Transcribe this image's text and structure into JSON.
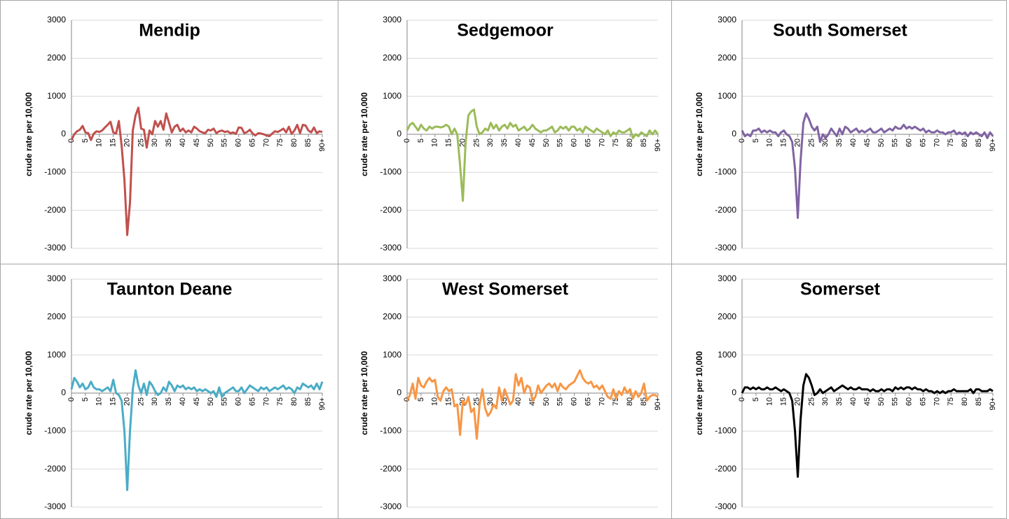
{
  "chart_data": [
    {
      "type": "line",
      "title": "Mendip",
      "ylabel": "crude rate per 10,000",
      "color": "#c0504d",
      "categories": [
        "0",
        null,
        null,
        null,
        null,
        "5",
        null,
        null,
        null,
        null,
        "10",
        null,
        null,
        null,
        null,
        "15",
        null,
        null,
        null,
        null,
        "20",
        null,
        null,
        null,
        null,
        "25",
        null,
        null,
        null,
        null,
        "30",
        null,
        null,
        null,
        null,
        "35",
        null,
        null,
        null,
        null,
        "40",
        null,
        null,
        null,
        null,
        "45",
        null,
        null,
        null,
        null,
        "50",
        null,
        null,
        null,
        null,
        "55",
        null,
        null,
        null,
        null,
        "60",
        null,
        null,
        null,
        null,
        "65",
        null,
        null,
        null,
        null,
        "70",
        null,
        null,
        null,
        null,
        "75",
        null,
        null,
        null,
        null,
        "80",
        null,
        null,
        null,
        null,
        "85",
        null,
        null,
        null,
        null,
        "90+"
      ],
      "values": [
        -150,
        0,
        80,
        120,
        220,
        50,
        30,
        -150,
        20,
        80,
        60,
        100,
        180,
        250,
        330,
        50,
        20,
        350,
        -300,
        -1200,
        -2650,
        -1800,
        100,
        500,
        700,
        150,
        120,
        -350,
        100,
        0,
        350,
        200,
        350,
        120,
        550,
        300,
        50,
        200,
        250,
        80,
        150,
        50,
        100,
        50,
        200,
        150,
        80,
        50,
        30,
        120,
        100,
        150,
        30,
        80,
        100,
        60,
        80,
        30,
        50,
        10,
        180,
        170,
        30,
        60,
        120,
        20,
        -30,
        30,
        20,
        0,
        -30,
        -50,
        20,
        80,
        60,
        100,
        150,
        50,
        200,
        10,
        100,
        250,
        30,
        250,
        230,
        100,
        50,
        180,
        30,
        80,
        60
      ],
      "ylim": [
        -3000,
        3000
      ],
      "yticks": [
        -3000,
        -2000,
        -1000,
        0,
        1000,
        2000,
        3000
      ],
      "grid": true
    },
    {
      "type": "line",
      "title": "Sedgemoor",
      "ylabel": "crude rate per 10,000",
      "color": "#9bbb59",
      "categories": [
        "0",
        null,
        null,
        null,
        null,
        "5",
        null,
        null,
        null,
        null,
        "10",
        null,
        null,
        null,
        null,
        "15",
        null,
        null,
        null,
        null,
        "20",
        null,
        null,
        null,
        null,
        "25",
        null,
        null,
        null,
        null,
        "30",
        null,
        null,
        null,
        null,
        "35",
        null,
        null,
        null,
        null,
        "40",
        null,
        null,
        null,
        null,
        "45",
        null,
        null,
        null,
        null,
        "50",
        null,
        null,
        null,
        null,
        "55",
        null,
        null,
        null,
        null,
        "60",
        null,
        null,
        null,
        null,
        "65",
        null,
        null,
        null,
        null,
        "70",
        null,
        null,
        null,
        null,
        "75",
        null,
        null,
        null,
        null,
        "80",
        null,
        null,
        null,
        null,
        "85",
        null,
        null,
        null,
        null,
        "90+"
      ],
      "values": [
        100,
        250,
        300,
        200,
        100,
        250,
        150,
        100,
        200,
        150,
        200,
        200,
        180,
        200,
        250,
        200,
        0,
        150,
        0,
        -800,
        -1750,
        -200,
        500,
        600,
        650,
        200,
        0,
        50,
        150,
        100,
        300,
        150,
        250,
        100,
        200,
        250,
        150,
        300,
        200,
        250,
        100,
        150,
        200,
        100,
        150,
        250,
        150,
        100,
        50,
        100,
        100,
        150,
        200,
        50,
        100,
        200,
        150,
        200,
        100,
        200,
        200,
        100,
        150,
        50,
        200,
        150,
        100,
        50,
        150,
        100,
        50,
        0,
        100,
        -50,
        50,
        0,
        100,
        50,
        50,
        100,
        150,
        -100,
        0,
        -50,
        50,
        0,
        -50,
        100,
        0,
        100,
        0
      ],
      "ylim": [
        -3000,
        3000
      ],
      "yticks": [
        -3000,
        -2000,
        -1000,
        0,
        1000,
        2000,
        3000
      ],
      "grid": true
    },
    {
      "type": "line",
      "title": "South Somerset",
      "ylabel": "crude rate per 10,000",
      "color": "#8064a2",
      "categories": [
        "0",
        null,
        null,
        null,
        null,
        "5",
        null,
        null,
        null,
        null,
        "10",
        null,
        null,
        null,
        null,
        "15",
        null,
        null,
        null,
        null,
        "20",
        null,
        null,
        null,
        null,
        "25",
        null,
        null,
        null,
        null,
        "30",
        null,
        null,
        null,
        null,
        "35",
        null,
        null,
        null,
        null,
        "40",
        null,
        null,
        null,
        null,
        "45",
        null,
        null,
        null,
        null,
        "50",
        null,
        null,
        null,
        null,
        "55",
        null,
        null,
        null,
        null,
        "60",
        null,
        null,
        null,
        null,
        "65",
        null,
        null,
        null,
        null,
        "70",
        null,
        null,
        null,
        null,
        "75",
        null,
        null,
        null,
        null,
        "80",
        null,
        null,
        null,
        null,
        "85",
        null,
        null,
        null,
        null,
        "90+"
      ],
      "values": [
        100,
        -50,
        0,
        -50,
        100,
        100,
        150,
        50,
        100,
        50,
        100,
        50,
        50,
        -50,
        50,
        100,
        0,
        -50,
        -200,
        -900,
        -2200,
        -700,
        300,
        550,
        400,
        200,
        100,
        200,
        -200,
        0,
        -100,
        0,
        150,
        50,
        -50,
        150,
        0,
        200,
        150,
        50,
        100,
        150,
        50,
        100,
        50,
        100,
        150,
        50,
        50,
        100,
        150,
        50,
        100,
        150,
        100,
        200,
        150,
        150,
        250,
        150,
        200,
        150,
        200,
        150,
        100,
        150,
        50,
        100,
        50,
        50,
        100,
        50,
        50,
        0,
        50,
        50,
        100,
        0,
        50,
        0,
        50,
        -50,
        50,
        0,
        50,
        0,
        -50,
        50,
        -100,
        50,
        -50
      ],
      "ylim": [
        -3000,
        3000
      ],
      "yticks": [
        -3000,
        -2000,
        -1000,
        0,
        1000,
        2000,
        3000
      ],
      "grid": true
    },
    {
      "type": "line",
      "title": "Taunton Deane",
      "ylabel": "crude rate per 10,000",
      "color": "#4bacc6",
      "categories": [
        "0",
        null,
        null,
        null,
        null,
        "5",
        null,
        null,
        null,
        null,
        "10",
        null,
        null,
        null,
        null,
        "15",
        null,
        null,
        null,
        null,
        "20",
        null,
        null,
        null,
        null,
        "25",
        null,
        null,
        null,
        null,
        "30",
        null,
        null,
        null,
        null,
        "35",
        null,
        null,
        null,
        null,
        "40",
        null,
        null,
        null,
        null,
        "45",
        null,
        null,
        null,
        null,
        "50",
        null,
        null,
        null,
        null,
        "55",
        null,
        null,
        null,
        null,
        "60",
        null,
        null,
        null,
        null,
        "65",
        null,
        null,
        null,
        null,
        "70",
        null,
        null,
        null,
        null,
        "75",
        null,
        null,
        null,
        null,
        "80",
        null,
        null,
        null,
        null,
        "85",
        null,
        null,
        null,
        null,
        "90+"
      ],
      "values": [
        100,
        400,
        300,
        150,
        250,
        100,
        150,
        300,
        150,
        100,
        100,
        50,
        100,
        150,
        50,
        350,
        0,
        -50,
        -200,
        -1000,
        -2550,
        -1000,
        100,
        600,
        200,
        0,
        250,
        -50,
        300,
        200,
        50,
        -50,
        0,
        150,
        50,
        300,
        200,
        50,
        200,
        150,
        200,
        100,
        150,
        100,
        150,
        50,
        100,
        50,
        100,
        50,
        0,
        50,
        -100,
        150,
        -100,
        0,
        50,
        100,
        150,
        50,
        50,
        150,
        0,
        100,
        200,
        150,
        100,
        50,
        150,
        100,
        150,
        50,
        100,
        150,
        100,
        150,
        200,
        100,
        150,
        100,
        0,
        150,
        100,
        250,
        200,
        150,
        200,
        100,
        250,
        100,
        300
      ],
      "ylim": [
        -3000,
        3000
      ],
      "yticks": [
        -3000,
        -2000,
        -1000,
        0,
        1000,
        2000,
        3000
      ],
      "grid": true
    },
    {
      "type": "line",
      "title": "West Somerset",
      "ylabel": "crude rate per 10,000",
      "color": "#f79646",
      "categories": [
        "0",
        null,
        null,
        null,
        null,
        "5",
        null,
        null,
        null,
        null,
        "10",
        null,
        null,
        null,
        null,
        "15",
        null,
        null,
        null,
        null,
        "20",
        null,
        null,
        null,
        null,
        "25",
        null,
        null,
        null,
        null,
        "30",
        null,
        null,
        null,
        null,
        "35",
        null,
        null,
        null,
        null,
        "40",
        null,
        null,
        null,
        null,
        "45",
        null,
        null,
        null,
        null,
        "50",
        null,
        null,
        null,
        null,
        "55",
        null,
        null,
        null,
        null,
        "60",
        null,
        null,
        null,
        null,
        "65",
        null,
        null,
        null,
        null,
        "70",
        null,
        null,
        null,
        null,
        "75",
        null,
        null,
        null,
        null,
        "80",
        null,
        null,
        null,
        null,
        "85",
        null,
        null,
        null,
        null,
        "90+"
      ],
      "values": [
        -200,
        -50,
        250,
        -150,
        400,
        200,
        150,
        300,
        400,
        300,
        350,
        -100,
        -200,
        50,
        150,
        50,
        100,
        -350,
        -300,
        -1100,
        -200,
        -300,
        -100,
        -500,
        -400,
        -1200,
        -300,
        100,
        -400,
        -600,
        -500,
        -300,
        -400,
        150,
        -200,
        100,
        -100,
        -300,
        -200,
        500,
        200,
        400,
        0,
        200,
        150,
        -200,
        -100,
        200,
        0,
        100,
        200,
        250,
        150,
        250,
        50,
        250,
        150,
        100,
        200,
        250,
        300,
        450,
        600,
        400,
        300,
        250,
        300,
        150,
        200,
        100,
        200,
        50,
        -100,
        -150,
        100,
        -150,
        50,
        -50,
        150,
        0,
        100,
        -150,
        50,
        -100,
        0,
        250,
        -200,
        -100,
        -50,
        -50,
        -100
      ],
      "ylim": [
        -3000,
        3000
      ],
      "yticks": [
        -3000,
        -2000,
        -1000,
        0,
        1000,
        2000,
        3000
      ],
      "grid": true
    },
    {
      "type": "line",
      "title": "Somerset",
      "ylabel": "crude rate per 10,000",
      "color": "#000000",
      "categories": [
        "0",
        null,
        null,
        null,
        null,
        "5",
        null,
        null,
        null,
        null,
        "10",
        null,
        null,
        null,
        null,
        "15",
        null,
        null,
        null,
        null,
        "20",
        null,
        null,
        null,
        null,
        "25",
        null,
        null,
        null,
        null,
        "30",
        null,
        null,
        null,
        null,
        "35",
        null,
        null,
        null,
        null,
        "40",
        null,
        null,
        null,
        null,
        "45",
        null,
        null,
        null,
        null,
        "50",
        null,
        null,
        null,
        null,
        "55",
        null,
        null,
        null,
        null,
        "60",
        null,
        null,
        null,
        null,
        "65",
        null,
        null,
        null,
        null,
        "70",
        null,
        null,
        null,
        null,
        "75",
        null,
        null,
        null,
        null,
        "80",
        null,
        null,
        null,
        null,
        "85",
        null,
        null,
        null,
        null,
        "90+"
      ],
      "values": [
        0,
        150,
        150,
        100,
        150,
        100,
        150,
        100,
        100,
        150,
        100,
        100,
        150,
        100,
        50,
        100,
        50,
        0,
        -200,
        -1000,
        -2200,
        -700,
        200,
        500,
        400,
        200,
        -50,
        0,
        100,
        0,
        50,
        100,
        150,
        50,
        100,
        150,
        200,
        150,
        100,
        150,
        100,
        100,
        150,
        100,
        100,
        100,
        50,
        100,
        50,
        50,
        100,
        50,
        100,
        100,
        50,
        150,
        100,
        150,
        100,
        150,
        150,
        100,
        150,
        100,
        100,
        50,
        100,
        50,
        50,
        0,
        50,
        0,
        50,
        0,
        50,
        50,
        100,
        50,
        50,
        50,
        50,
        50,
        100,
        0,
        100,
        100,
        50,
        50,
        50,
        100,
        50
      ],
      "ylim": [
        -3000,
        3000
      ],
      "yticks": [
        -3000,
        -2000,
        -1000,
        0,
        1000,
        2000,
        3000
      ],
      "grid": true
    }
  ]
}
